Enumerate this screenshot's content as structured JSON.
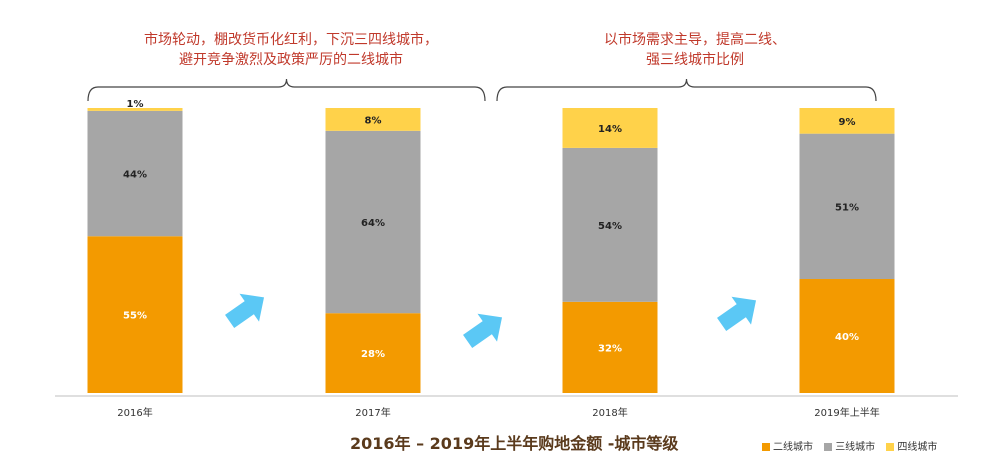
{
  "chart_data": {
    "type": "bar",
    "stacked": true,
    "normalized": true,
    "title": "2016年 – 2019年上半年购地金额 -城市等级",
    "categories": [
      "2016年",
      "2017年",
      "2018年",
      "2019年上半年"
    ],
    "series": [
      {
        "name": "二线城市",
        "color": "#f39a00",
        "label_color": "#ffffff",
        "values": [
          55,
          28,
          32,
          40
        ],
        "labels": [
          "55%",
          "28%",
          "32%",
          "40%"
        ]
      },
      {
        "name": "三线城市",
        "color": "#a6a6a6",
        "label_color": "#222222",
        "values": [
          44,
          64,
          54,
          51
        ],
        "labels": [
          "44%",
          "64%",
          "54%",
          "51%"
        ]
      },
      {
        "name": "四线城市",
        "color": "#ffd24a",
        "label_color": "#222222",
        "values": [
          1,
          8,
          14,
          9
        ],
        "labels": [
          "1%",
          "8%",
          "14%",
          "9%"
        ]
      }
    ],
    "ylim": [
      0,
      100
    ],
    "legend_position": "bottom-right",
    "grid": false,
    "arrow_color": "#5bc8f5"
  },
  "annotations": {
    "left": {
      "line1": "市场轮动，棚改货币化红利，下沉三四线城市，",
      "line2": "避开竞争激烈及政策严厉的二线城市"
    },
    "right": {
      "line1": "以市场需求主导，提高二线、",
      "line2": "强三线城市比例"
    }
  }
}
